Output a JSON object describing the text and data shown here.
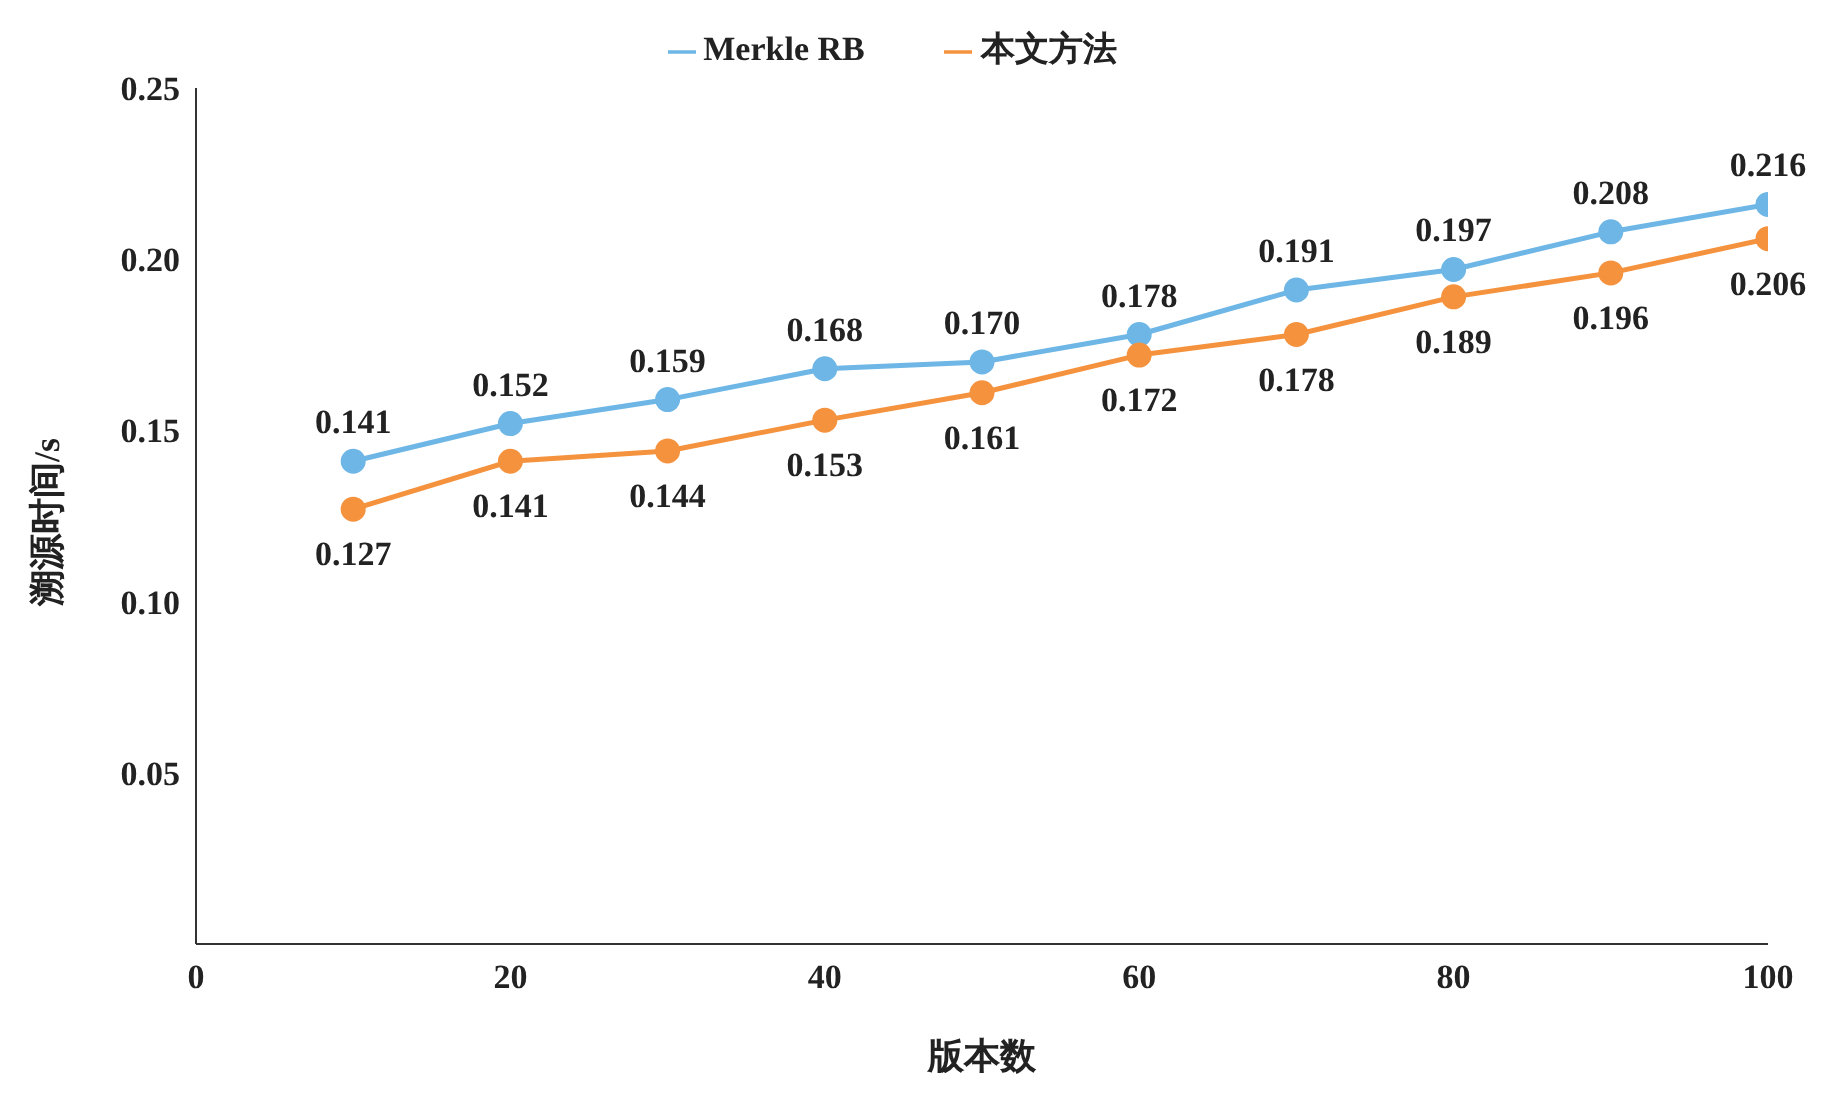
{
  "chart_data": {
    "type": "line",
    "xlabel": "版本数",
    "ylabel": "溯源时间/s",
    "x": [
      10,
      20,
      30,
      40,
      50,
      60,
      70,
      80,
      90,
      100
    ],
    "series": [
      {
        "name": "Merkle RB",
        "color": "#6db6e6",
        "values": [
          0.141,
          0.152,
          0.159,
          0.168,
          0.17,
          0.178,
          0.191,
          0.197,
          0.208,
          0.216
        ],
        "value_labels": [
          "0.141",
          "0.152",
          "0.159",
          "0.168",
          "0.170",
          "0.178",
          "0.191",
          "0.197",
          "0.208",
          "0.216"
        ]
      },
      {
        "name": "本文方法",
        "color": "#f5923e",
        "values": [
          0.127,
          0.141,
          0.144,
          0.153,
          0.161,
          0.172,
          0.178,
          0.189,
          0.196,
          0.206
        ],
        "value_labels": [
          "0.127",
          "0.141",
          "0.144",
          "0.153",
          "0.161",
          "0.172",
          "0.178",
          "0.189",
          "0.196",
          "0.206"
        ]
      }
    ],
    "xlim": [
      0,
      100
    ],
    "xticks": [
      0,
      20,
      40,
      60,
      80,
      100
    ],
    "ylim": [
      0,
      0.25
    ],
    "yticks": [
      {
        "value": 0.05,
        "label": "0.05"
      },
      {
        "value": 0.1,
        "label": "0.10"
      },
      {
        "value": 0.15,
        "label": "0.15"
      },
      {
        "value": 0.2,
        "label": "0.20"
      },
      {
        "value": 0.25,
        "label": "0.25"
      }
    ],
    "grid": false,
    "legend": "top",
    "marker": "circle",
    "line_style": "solid"
  }
}
